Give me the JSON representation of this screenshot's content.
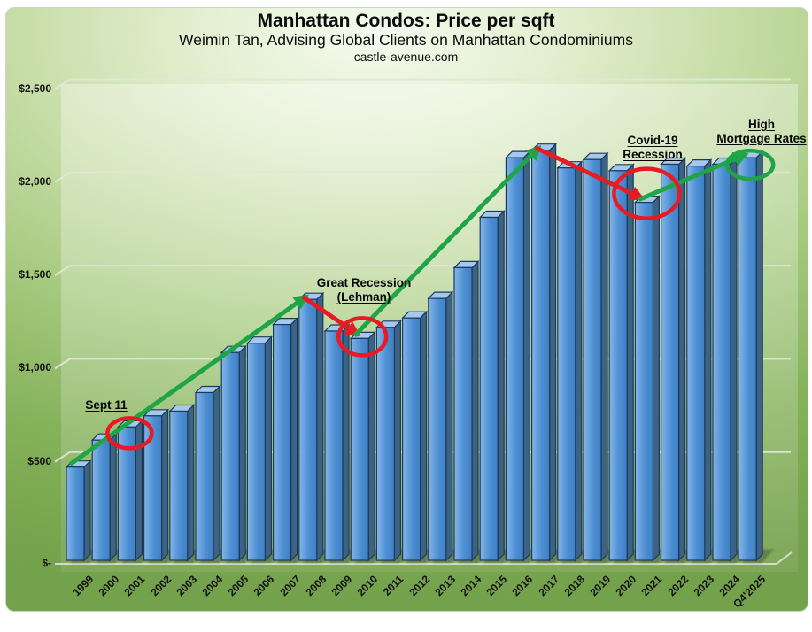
{
  "header": {
    "title": "Manhattan Condos: Price per sqft",
    "subtitle": "Weimin Tan, Advising Global Clients on Manhattan Condominiums",
    "website": "castle-avenue.com"
  },
  "colors": {
    "up_trend": "#1FA546",
    "down_trend": "#E81B23",
    "bar_front_light": "#84B5E7",
    "bar_front_dark": "#3F80C5",
    "bar_side": "#3C6383",
    "bar_top": "#A6C8EC",
    "bar_outline": "#1C3A5E",
    "gridline": "#E2E6D8",
    "canvas_green": "#7CAB52"
  },
  "annotations": {
    "sept11": {
      "line1": "Sept 11"
    },
    "great_recession": {
      "line1": "Great Recession",
      "line2": "(Lehman)"
    },
    "covid": {
      "line1": "Covid-19",
      "line2": "Recession"
    },
    "mortgage": {
      "line1": "High",
      "line2": "Mortgage Rates"
    }
  },
  "chart_data": {
    "type": "bar",
    "title": "Manhattan Condos: Price per sqft",
    "subtitle": "Weimin Tan, Advising Global Clients on Manhattan Condominiums",
    "source": "castle-avenue.com",
    "ylim": [
      0,
      2500
    ],
    "grid": true,
    "legend": false,
    "categories": [
      "1999",
      "2000",
      "2001",
      "2002",
      "2003",
      "2004",
      "2005",
      "2006",
      "2007",
      "2008",
      "2009",
      "2010",
      "2011",
      "2012",
      "2013",
      "2014",
      "2015",
      "2016",
      "2017",
      "2018",
      "2019",
      "2020",
      "2021",
      "2022",
      "2023",
      "2024",
      "Q4'2025"
    ],
    "values": [
      500,
      645,
      715,
      775,
      800,
      900,
      1115,
      1165,
      1265,
      1400,
      1230,
      1190,
      1250,
      1300,
      1405,
      1570,
      1840,
      2160,
      2200,
      2105,
      2150,
      2090,
      1920,
      2125,
      2115,
      2125,
      2160
    ],
    "y_ticks": [
      {
        "label": "$-",
        "value": 0
      },
      {
        "label": "$500",
        "value": 500
      },
      {
        "label": "$1,000",
        "value": 1000
      },
      {
        "label": "$1,500",
        "value": 1500
      },
      {
        "label": "$2,000",
        "value": 2000
      },
      {
        "label": "$2,500",
        "value": 2500
      }
    ],
    "trend_segments": [
      {
        "from": "1999",
        "to": "2008",
        "color": "green"
      },
      {
        "from": "2008",
        "to": "2010",
        "color": "red"
      },
      {
        "from": "2010",
        "to": "2017",
        "color": "green"
      },
      {
        "from": "2017",
        "to": "2021",
        "color": "red"
      },
      {
        "from": "2021",
        "to": "Q4'2025",
        "color": "green"
      }
    ],
    "event_markers": [
      {
        "label": "Sept 11",
        "at": "2001",
        "circle": "red"
      },
      {
        "label": "Great Recession (Lehman)",
        "at": "2010",
        "circle": "red"
      },
      {
        "label": "Covid-19 Recession",
        "at": "2021",
        "circle": "red"
      },
      {
        "label": "High Mortgage Rates",
        "at": "Q4'2025",
        "circle": "green"
      }
    ]
  }
}
